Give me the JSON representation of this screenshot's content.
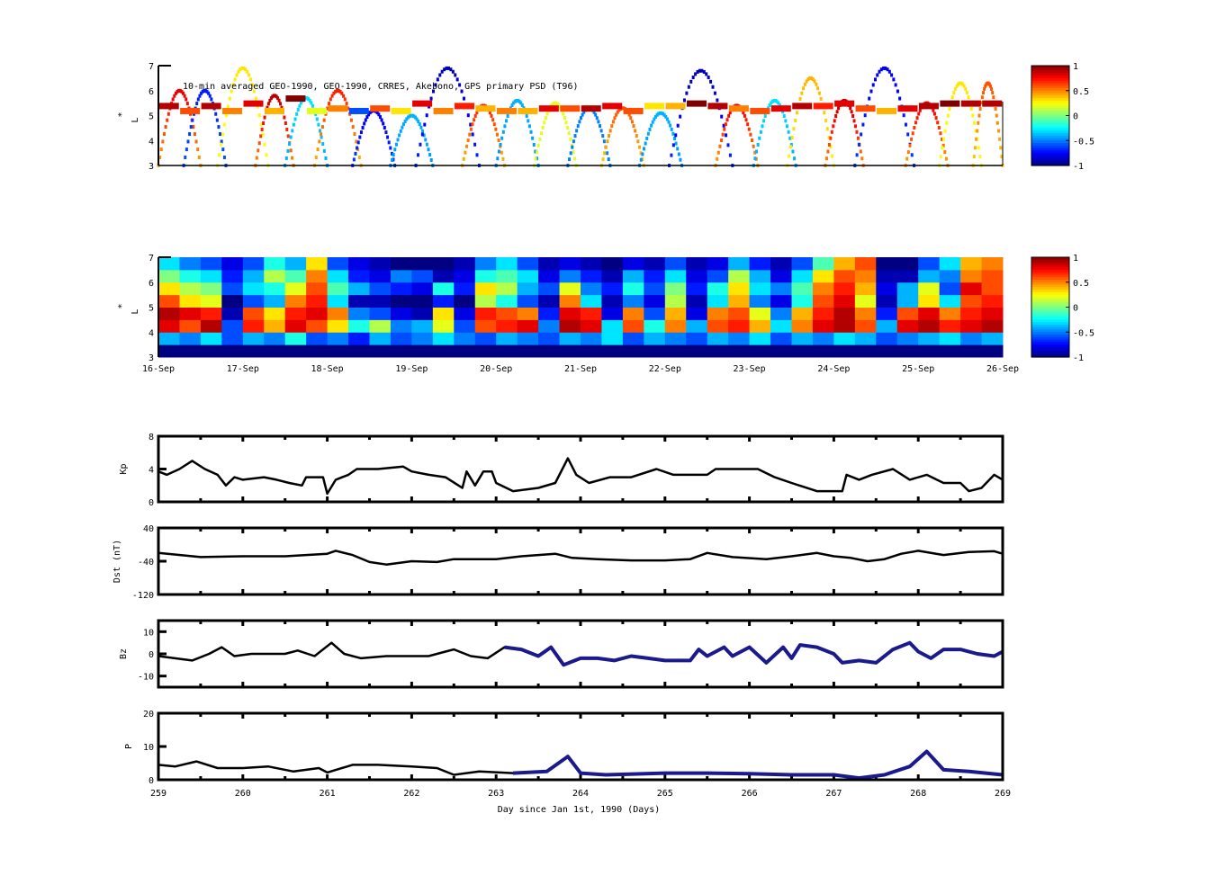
{
  "colors": {
    "line": "#000000",
    "overlay": "#1a1a8c",
    "colormap": "jet"
  },
  "chart_data": [
    {
      "type": "scatter",
      "title": "10-min averaged GEO-1990, GEO-1990, CRRES, Akebono, GPS  primary PSD (T96)",
      "ylabel": "L*",
      "ylabel_main": "L",
      "ylabel_star": "*",
      "xlim": [
        259,
        269
      ],
      "ylim": [
        3,
        7
      ],
      "yticks": [
        "3",
        "4",
        "5",
        "6",
        "7"
      ],
      "colorbar": {
        "range": [
          -1,
          1
        ],
        "ticks": [
          "1",
          "0.5",
          "0",
          "-0.5",
          "-1"
        ]
      },
      "geo_track": {
        "L": [
          5.4,
          5.2,
          5.4,
          5.2,
          5.5,
          5.2,
          5.7,
          5.2,
          5.3,
          5.2,
          5.3,
          5.2,
          5.5,
          5.2,
          5.4,
          5.3,
          5.2,
          5.2,
          5.3,
          5.3,
          5.3,
          5.4,
          5.2,
          5.4,
          5.4,
          5.5,
          5.4,
          5.3,
          5.2,
          5.3,
          5.4,
          5.4,
          5.5,
          5.3,
          5.2,
          5.3,
          5.4,
          5.5,
          5.5,
          5.5
        ],
        "psd": [
          0.9,
          0.6,
          0.9,
          0.5,
          0.8,
          0.4,
          1.0,
          0.2,
          0.5,
          -0.6,
          0.6,
          0.3,
          0.8,
          0.5,
          0.7,
          0.4,
          0.5,
          0.4,
          0.8,
          0.6,
          0.9,
          0.8,
          0.6,
          0.3,
          0.4,
          1.0,
          0.9,
          0.5,
          0.6,
          0.8,
          0.9,
          0.7,
          0.8,
          0.6,
          0.4,
          0.8,
          0.9,
          1.0,
          0.9,
          0.9
        ]
      },
      "orbit_arcs": [
        {
          "start": 259.0,
          "end": 259.5,
          "peakL": 6.0,
          "psd": 0.8
        },
        {
          "start": 259.3,
          "end": 259.8,
          "peakL": 6.0,
          "psd": -0.7
        },
        {
          "start": 259.7,
          "end": 260.3,
          "peakL": 6.9,
          "psd": 0.3
        },
        {
          "start": 260.15,
          "end": 260.6,
          "peakL": 5.8,
          "psd": 0.9
        },
        {
          "start": 260.5,
          "end": 261.0,
          "peakL": 5.7,
          "psd": -0.3
        },
        {
          "start": 260.85,
          "end": 261.4,
          "peakL": 6.0,
          "psd": 0.7
        },
        {
          "start": 261.3,
          "end": 261.8,
          "peakL": 5.2,
          "psd": -0.8
        },
        {
          "start": 261.75,
          "end": 262.25,
          "peakL": 5.0,
          "psd": -0.4
        },
        {
          "start": 262.05,
          "end": 262.8,
          "peakL": 6.9,
          "psd": -0.9
        },
        {
          "start": 262.6,
          "end": 263.1,
          "peakL": 5.4,
          "psd": 0.7
        },
        {
          "start": 263.0,
          "end": 263.5,
          "peakL": 5.6,
          "psd": -0.4
        },
        {
          "start": 263.45,
          "end": 263.95,
          "peakL": 5.5,
          "psd": 0.2
        },
        {
          "start": 263.85,
          "end": 264.35,
          "peakL": 5.3,
          "psd": -0.5
        },
        {
          "start": 264.25,
          "end": 264.75,
          "peakL": 5.3,
          "psd": 0.6
        },
        {
          "start": 264.7,
          "end": 265.2,
          "peakL": 5.1,
          "psd": -0.4
        },
        {
          "start": 265.05,
          "end": 265.8,
          "peakL": 6.8,
          "psd": -0.9
        },
        {
          "start": 265.6,
          "end": 266.1,
          "peakL": 5.4,
          "psd": 0.8
        },
        {
          "start": 266.05,
          "end": 266.55,
          "peakL": 5.6,
          "psd": -0.3
        },
        {
          "start": 266.45,
          "end": 267.0,
          "peakL": 6.5,
          "psd": 0.4
        },
        {
          "start": 266.9,
          "end": 267.35,
          "peakL": 5.6,
          "psd": 0.9
        },
        {
          "start": 267.25,
          "end": 267.95,
          "peakL": 6.9,
          "psd": -0.8
        },
        {
          "start": 267.85,
          "end": 268.35,
          "peakL": 5.5,
          "psd": 0.8
        },
        {
          "start": 268.25,
          "end": 268.75,
          "peakL": 6.3,
          "psd": 0.3
        },
        {
          "start": 268.65,
          "end": 269.0,
          "peakL": 6.3,
          "psd": 0.6
        }
      ]
    },
    {
      "type": "heatmap",
      "ylabel_main": "L",
      "ylabel_star": "*",
      "xlim": [
        259,
        269
      ],
      "ylim": [
        3,
        7
      ],
      "yticks": [
        "3",
        "4",
        "5",
        "6",
        "7"
      ],
      "xticks": [
        "16-Sep",
        "17-Sep",
        "18-Sep",
        "19-Sep",
        "20-Sep",
        "21-Sep",
        "22-Sep",
        "23-Sep",
        "24-Sep",
        "25-Sep",
        "26-Sep"
      ],
      "colorbar": {
        "range": [
          -1,
          1
        ],
        "ticks": [
          "1",
          "0.5",
          "0",
          "-0.5",
          "-1"
        ]
      },
      "L_bins": [
        3.25,
        3.75,
        4.25,
        4.75,
        5.25,
        5.75,
        6.25,
        6.75
      ],
      "x_step_days": 0.25,
      "values": [
        [
          -1,
          -1,
          -1,
          -1,
          -1,
          -1,
          -1,
          -1,
          -1,
          -1,
          -1,
          -1,
          -1,
          -1,
          -1,
          -1,
          -1,
          -1,
          -1,
          -1,
          -1,
          -1,
          -1,
          -1,
          -1,
          -1,
          -1,
          -1,
          -1,
          -1,
          -1,
          -1,
          -1,
          -1,
          -1,
          -1,
          -1,
          -1,
          -1,
          -1
        ],
        [
          -0.4,
          -0.5,
          -0.3,
          -0.6,
          -0.4,
          -0.5,
          -0.2,
          -0.6,
          -0.5,
          -0.7,
          -0.4,
          -0.6,
          -0.5,
          -0.3,
          -0.5,
          -0.6,
          -0.4,
          -0.5,
          -0.6,
          -0.4,
          -0.5,
          -0.3,
          -0.6,
          -0.4,
          -0.5,
          -0.6,
          -0.4,
          -0.5,
          -0.3,
          -0.6,
          -0.4,
          -0.5,
          -0.3,
          -0.4,
          -0.6,
          -0.5,
          -0.4,
          -0.3,
          -0.5,
          -0.4
        ],
        [
          0.8,
          0.6,
          0.9,
          -0.6,
          0.7,
          0.4,
          0.8,
          0.6,
          0.3,
          -0.2,
          0.1,
          -0.5,
          -0.4,
          0.2,
          -0.6,
          0.6,
          0.7,
          0.8,
          -0.5,
          0.9,
          0.8,
          -0.3,
          0.6,
          -0.2,
          0.5,
          -0.4,
          0.6,
          0.7,
          0.4,
          -0.3,
          0.5,
          0.8,
          0.9,
          0.6,
          -0.4,
          0.8,
          0.9,
          0.7,
          0.8,
          0.9
        ],
        [
          0.9,
          0.8,
          0.7,
          -0.9,
          0.6,
          0.3,
          0.7,
          0.8,
          0.5,
          -0.5,
          -0.6,
          -0.8,
          -0.9,
          0.3,
          -0.8,
          0.7,
          0.6,
          0.5,
          -0.7,
          0.8,
          0.7,
          -0.8,
          0.5,
          -0.6,
          0.4,
          -0.8,
          0.5,
          0.6,
          0.2,
          -0.5,
          0.4,
          0.7,
          0.9,
          0.5,
          -0.7,
          0.6,
          0.8,
          0.5,
          0.7,
          0.8
        ],
        [
          0.6,
          0.3,
          0.2,
          -1,
          -0.6,
          -0.4,
          0.5,
          0.7,
          -0.3,
          -0.9,
          -0.9,
          -1,
          -1,
          -0.7,
          -1,
          0.1,
          -0.2,
          -0.6,
          -0.9,
          0.5,
          -0.3,
          -0.9,
          -0.5,
          -0.8,
          0.1,
          -0.9,
          -0.3,
          0.4,
          -0.5,
          -0.8,
          -0.2,
          0.6,
          0.8,
          0.2,
          -0.9,
          -0.4,
          0.3,
          -0.3,
          0.6,
          0.7
        ],
        [
          0.3,
          0.1,
          0.0,
          -0.6,
          -0.3,
          -0.2,
          0.2,
          0.6,
          -0.1,
          -0.4,
          -0.6,
          -0.7,
          -0.8,
          -0.2,
          -0.7,
          0.3,
          0.1,
          -0.4,
          -0.6,
          0.2,
          -0.5,
          -0.7,
          -0.2,
          -0.6,
          0.0,
          -0.7,
          -0.2,
          0.3,
          -0.3,
          -0.5,
          -0.1,
          0.5,
          0.7,
          0.4,
          -0.8,
          -0.4,
          0.2,
          -0.6,
          0.8,
          0.6
        ],
        [
          0.0,
          -0.2,
          -0.3,
          -0.7,
          -0.4,
          0.1,
          -0.1,
          0.5,
          -0.3,
          -0.7,
          -0.8,
          -0.5,
          -0.6,
          -0.9,
          -0.8,
          -0.2,
          -0.1,
          -0.3,
          -0.8,
          -0.5,
          -0.7,
          -0.9,
          -0.4,
          -0.7,
          -0.3,
          -0.8,
          -0.6,
          0.1,
          -0.4,
          -0.8,
          -0.3,
          0.3,
          0.6,
          0.5,
          -0.9,
          -0.9,
          -0.4,
          -0.5,
          0.5,
          0.6
        ],
        [
          -0.3,
          -0.5,
          -0.6,
          -0.8,
          -0.6,
          -0.2,
          -0.4,
          0.3,
          -0.6,
          -0.8,
          -0.9,
          -1,
          -1,
          -1,
          -0.9,
          -0.5,
          -0.3,
          -0.6,
          -0.9,
          -0.8,
          -0.9,
          -1,
          -0.8,
          -0.9,
          -0.6,
          -0.9,
          -0.8,
          -0.4,
          -0.7,
          -0.9,
          -0.6,
          -0.1,
          0.4,
          0.6,
          -1,
          -1,
          -0.6,
          -0.3,
          0.4,
          0.5
        ]
      ]
    },
    {
      "type": "line",
      "ylabel": "Kp",
      "xlim": [
        259,
        269
      ],
      "ylim": [
        0,
        8
      ],
      "yticks": [
        "0",
        "4",
        "8"
      ],
      "x": [
        259,
        259.1,
        259.25,
        259.4,
        259.55,
        259.7,
        259.8,
        259.9,
        260,
        260.25,
        260.4,
        260.55,
        260.7,
        260.75,
        260.95,
        261.0,
        261.1,
        261.25,
        261.35,
        261.6,
        261.9,
        262.0,
        262.2,
        262.4,
        262.6,
        262.65,
        262.75,
        262.85,
        262.95,
        263.0,
        263.2,
        263.5,
        263.7,
        263.85,
        263.95,
        264.1,
        264.35,
        264.6,
        264.9,
        265.1,
        265.5,
        265.6,
        266.1,
        266.3,
        266.5,
        266.8,
        267.1,
        267.15,
        267.3,
        267.45,
        267.7,
        267.9,
        268.1,
        268.3,
        268.5,
        268.6,
        268.75,
        268.9,
        269
      ],
      "y": [
        3.7,
        3.3,
        4,
        5,
        4,
        3.3,
        2,
        3,
        2.7,
        3,
        2.7,
        2.3,
        2,
        3,
        3,
        1,
        2.7,
        3.3,
        4,
        4,
        4.3,
        3.7,
        3.3,
        3,
        1.7,
        3.7,
        2,
        3.7,
        3.7,
        2.3,
        1.3,
        1.7,
        2.3,
        5.3,
        3.3,
        2.3,
        3,
        3,
        4,
        3.3,
        3.3,
        4,
        4,
        3,
        2.3,
        1.3,
        1.3,
        3.3,
        2.7,
        3.3,
        4,
        2.7,
        3.3,
        2.3,
        2.3,
        1.3,
        1.7,
        3.3,
        2.7
      ]
    },
    {
      "type": "line",
      "ylabel": "Dst (nT)",
      "xlim": [
        259,
        269
      ],
      "ylim": [
        -120,
        40
      ],
      "yticks": [
        "-120",
        "-40",
        "40"
      ],
      "x": [
        259,
        259.5,
        260,
        260.5,
        261,
        261.1,
        261.3,
        261.5,
        261.7,
        262,
        262.3,
        262.5,
        263,
        263.3,
        263.5,
        263.7,
        263.9,
        264.2,
        264.6,
        265,
        265.3,
        265.5,
        265.8,
        266.2,
        266.5,
        266.8,
        267,
        267.2,
        267.4,
        267.6,
        267.8,
        268,
        268.3,
        268.6,
        268.9,
        269
      ],
      "y": [
        -20,
        -30,
        -28,
        -28,
        -22,
        -15,
        -25,
        -42,
        -48,
        -40,
        -42,
        -35,
        -35,
        -28,
        -25,
        -22,
        -32,
        -35,
        -38,
        -38,
        -35,
        -20,
        -30,
        -35,
        -28,
        -20,
        -28,
        -32,
        -40,
        -35,
        -22,
        -15,
        -25,
        -18,
        -16,
        -22
      ]
    },
    {
      "type": "line",
      "ylabel": "Bz",
      "xlim": [
        259,
        269
      ],
      "ylim": [
        -15,
        15
      ],
      "yticks": [
        "-10",
        "0",
        "10"
      ],
      "x": [
        259,
        259.4,
        259.6,
        259.75,
        259.9,
        260.1,
        260.5,
        260.65,
        260.85,
        261.05,
        261.2,
        261.4,
        261.7,
        262,
        262.2,
        262.4,
        262.5,
        262.7,
        262.9,
        263.1,
        263.3,
        263.5,
        263.65,
        263.8,
        264.0,
        264.2,
        264.4,
        264.6,
        264.8,
        265.0,
        265.3,
        265.4,
        265.5,
        265.7,
        265.8,
        266.0,
        266.2,
        266.4,
        266.5,
        266.6,
        266.8,
        267.0,
        267.1,
        267.3,
        267.5,
        267.7,
        267.9,
        268.0,
        268.15,
        268.3,
        268.5,
        268.7,
        268.9,
        269
      ],
      "y": [
        -1,
        -3,
        0,
        3,
        -1,
        0,
        0,
        1.5,
        -1,
        5,
        0,
        -2,
        -1,
        -1,
        -1,
        1,
        2,
        -1,
        -2,
        3,
        2,
        -1,
        3,
        -5,
        -2,
        -2,
        -3,
        -1,
        -2,
        -3,
        -3,
        2,
        -1,
        3,
        -1,
        3,
        -4,
        3,
        -2,
        4,
        3,
        0,
        -4,
        -3,
        -4,
        2,
        5,
        1,
        -2,
        2,
        2,
        0,
        -1,
        1
      ],
      "overlay_from": 262.95
    },
    {
      "type": "line",
      "ylabel": "P",
      "xlabel": "Day since Jan 1st, 1990 (Days)",
      "xlim": [
        259,
        269
      ],
      "ylim": [
        0,
        20
      ],
      "yticks": [
        "0",
        "10",
        "20"
      ],
      "xticks": [
        "259",
        "260",
        "261",
        "262",
        "263",
        "264",
        "265",
        "266",
        "267",
        "268",
        "269"
      ],
      "x": [
        259,
        259.2,
        259.45,
        259.7,
        260,
        260.3,
        260.6,
        260.9,
        261,
        261.3,
        261.6,
        262,
        262.3,
        262.5,
        262.8,
        263.2,
        263.6,
        263.85,
        264.0,
        264.3,
        265,
        265.5,
        266,
        266.5,
        267,
        267.3,
        267.6,
        267.9,
        268.1,
        268.3,
        268.6,
        269
      ],
      "y": [
        4.5,
        4,
        5.5,
        3.5,
        3.5,
        4,
        2.5,
        3.5,
        2.2,
        4.5,
        4.5,
        4,
        3.5,
        1.5,
        2.5,
        2,
        2.5,
        7,
        2,
        1.5,
        2,
        2,
        1.8,
        1.5,
        1.5,
        0.5,
        1.5,
        4,
        8.5,
        3,
        2.5,
        1.5
      ],
      "overlay_from": 262.95
    }
  ]
}
